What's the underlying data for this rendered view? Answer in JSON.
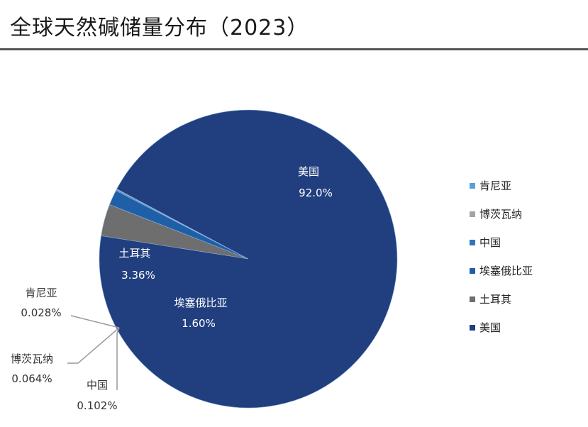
{
  "title": "全球天然碱储量分布（2023）",
  "chart_data": {
    "type": "pie",
    "title": "全球天然碱储量分布（2023）",
    "legend_position": "right",
    "slices": [
      {
        "name": "肯尼亚",
        "value": 0.028,
        "label": "0.028%",
        "color": "#5b9fd6"
      },
      {
        "name": "博茨瓦纳",
        "value": 0.064,
        "label": "0.064%",
        "color": "#a3a3a3"
      },
      {
        "name": "中国",
        "value": 0.102,
        "label": "0.102%",
        "color": "#2f74b8"
      },
      {
        "name": "埃塞俄比亚",
        "value": 1.6,
        "label": "1.60%",
        "color": "#1f5fa8"
      },
      {
        "name": "土耳其",
        "value": 3.36,
        "label": "3.36%",
        "color": "#6e6e6e"
      },
      {
        "name": "美国",
        "value": 92.0,
        "label": "92.0%",
        "color": "#213f7f"
      }
    ]
  }
}
